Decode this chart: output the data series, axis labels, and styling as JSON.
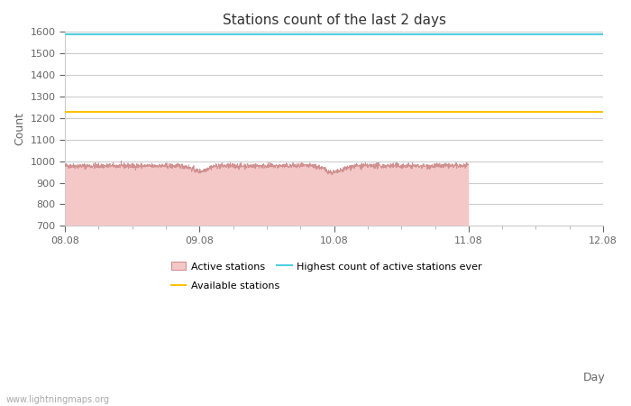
{
  "title": "Stations count of the last 2 days",
  "xlabel": "Day",
  "ylabel": "Count",
  "ylim": [
    700,
    1600
  ],
  "yticks": [
    700,
    800,
    900,
    1000,
    1100,
    1200,
    1300,
    1400,
    1500,
    1600
  ],
  "x_start": 0,
  "x_end": 4.0,
  "xtick_positions": [
    0,
    1,
    2,
    3,
    4
  ],
  "xtick_labels": [
    "08.08",
    "09.08",
    "10.08",
    "11.08",
    "12.08"
  ],
  "highest_ever_line": 1590,
  "available_stations_line": 1228,
  "active_color_fill": "#f5c8c8",
  "active_color_line": "#d09090",
  "highest_color": "#4dd0e1",
  "available_color": "#ffc107",
  "background_color": "#ffffff",
  "grid_color": "#cccccc",
  "watermark": "www.lightningmaps.org",
  "title_fontsize": 11,
  "axis_label_fontsize": 9,
  "tick_fontsize": 8,
  "legend_fontsize": 8
}
